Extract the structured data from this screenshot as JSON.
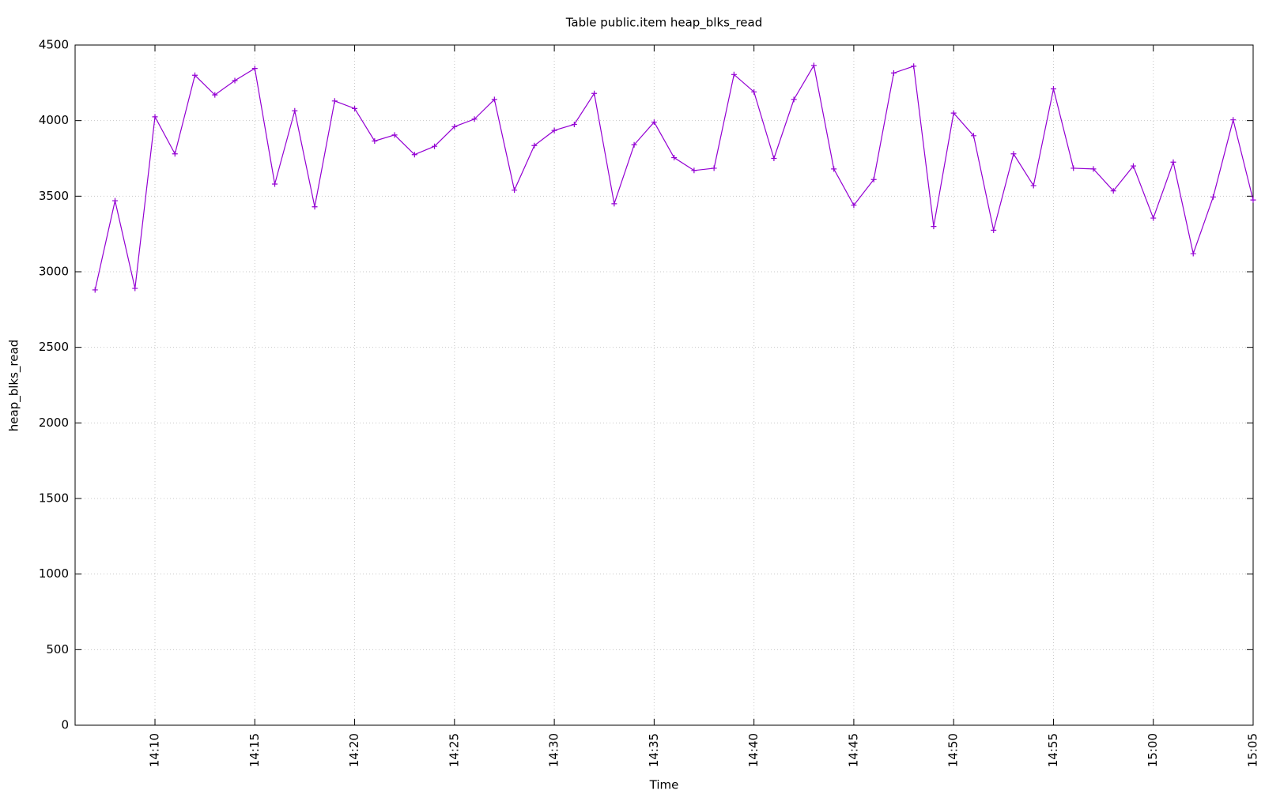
{
  "chart_data": {
    "type": "line",
    "title": "Table public.item heap_blks_read",
    "xlabel": "Time",
    "ylabel": "heap_blks_read",
    "x": [
      "14:07",
      "14:08",
      "14:09",
      "14:10",
      "14:11",
      "14:12",
      "14:13",
      "14:14",
      "14:15",
      "14:16",
      "14:17",
      "14:18",
      "14:19",
      "14:20",
      "14:21",
      "14:22",
      "14:23",
      "14:24",
      "14:25",
      "14:26",
      "14:27",
      "14:28",
      "14:29",
      "14:30",
      "14:31",
      "14:32",
      "14:33",
      "14:34",
      "14:35",
      "14:36",
      "14:37",
      "14:38",
      "14:39",
      "14:40",
      "14:41",
      "14:42",
      "14:43",
      "14:44",
      "14:45",
      "14:46",
      "14:47",
      "14:48",
      "14:49",
      "14:50",
      "14:51",
      "14:52",
      "14:53",
      "14:54",
      "14:55",
      "14:56",
      "14:57",
      "14:58",
      "14:59",
      "15:00",
      "15:01",
      "15:02",
      "15:03",
      "15:04",
      "15:05"
    ],
    "values": [
      2880,
      3470,
      2890,
      4025,
      3780,
      4300,
      4170,
      4265,
      4345,
      3580,
      4065,
      3430,
      4130,
      4080,
      3865,
      3905,
      3775,
      3830,
      3960,
      4010,
      4140,
      3540,
      3835,
      3935,
      3975,
      4180,
      3450,
      3840,
      3990,
      3755,
      3670,
      3685,
      4305,
      4190,
      3750,
      4140,
      4365,
      3680,
      3440,
      3610,
      4315,
      4360,
      3300,
      4050,
      3900,
      3275,
      3780,
      3570,
      4210,
      3685,
      3680,
      3535,
      3700,
      3355,
      3725,
      3120,
      3495,
      4005,
      3475
    ],
    "color": "#9400d3",
    "xlim": [
      "14:06",
      "15:05"
    ],
    "xticks": [
      "14:10",
      "14:15",
      "14:20",
      "14:25",
      "14:30",
      "14:35",
      "14:40",
      "14:45",
      "14:50",
      "14:55",
      "15:00",
      "15:05"
    ],
    "ylim": [
      0,
      4500
    ],
    "yticks": [
      0,
      500,
      1000,
      1500,
      2000,
      2500,
      3000,
      3500,
      4000,
      4500
    ],
    "grid": true
  }
}
